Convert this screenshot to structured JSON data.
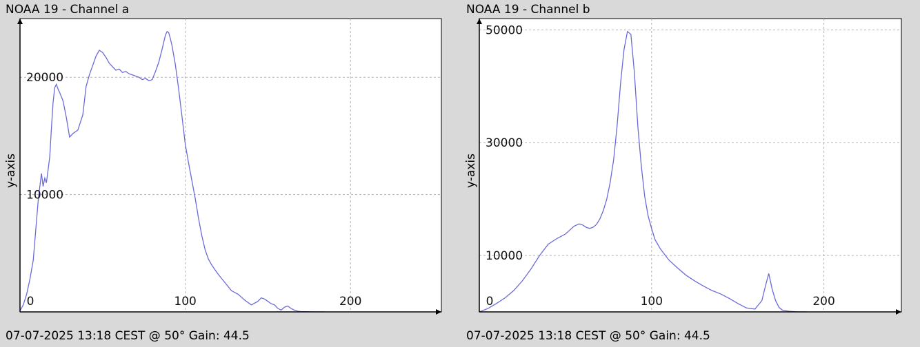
{
  "colors": {
    "background": "#d9d9d9",
    "plot_background": "#ffffff",
    "line": "#6a6ad8",
    "grid": "#b3b3b3",
    "axis": "#000000"
  },
  "chart_data": [
    {
      "type": "line",
      "title": "NOAA 19 - Channel a",
      "xlabel": "",
      "ylabel": "y-axis",
      "footer": "07-07-2025 13:18 CEST @ 50° Gain: 44.5",
      "xlim": [
        0,
        255
      ],
      "ylim": [
        0,
        25000
      ],
      "x_ticks": [
        0,
        100,
        200
      ],
      "y_ticks": [
        10000,
        20000
      ],
      "grid": true,
      "series": [
        {
          "x": [
            0,
            2,
            4,
            6,
            8,
            9,
            10,
            11,
            12,
            13,
            14,
            15,
            16,
            18,
            19,
            20,
            21,
            22,
            23,
            24,
            26,
            28,
            30,
            32,
            35,
            38,
            40,
            42,
            44,
            46,
            48,
            50,
            52,
            54,
            56,
            58,
            60,
            62,
            64,
            66,
            68,
            70,
            72,
            74,
            76,
            78,
            80,
            82,
            84,
            86,
            88,
            89,
            90,
            91,
            92,
            94,
            96,
            98,
            100,
            102,
            104,
            106,
            108,
            110,
            112,
            114,
            116,
            118,
            120,
            124,
            128,
            132,
            136,
            140,
            144,
            146,
            148,
            150,
            152,
            154,
            156,
            158,
            160,
            162,
            164,
            166,
            168,
            170,
            174,
            178,
            182,
            184
          ],
          "y": [
            100,
            600,
            1500,
            2800,
            4400,
            6100,
            7800,
            9500,
            10700,
            11800,
            10700,
            11400,
            11000,
            13200,
            15600,
            17800,
            19100,
            19400,
            19000,
            18700,
            18000,
            16600,
            14900,
            15200,
            15500,
            16800,
            19200,
            20200,
            21000,
            21800,
            22300,
            22100,
            21700,
            21200,
            20900,
            20600,
            20700,
            20400,
            20500,
            20300,
            20200,
            20100,
            20000,
            19800,
            19900,
            19700,
            19800,
            20500,
            21300,
            22400,
            23600,
            23900,
            23800,
            23300,
            22700,
            21100,
            19000,
            16700,
            14300,
            12700,
            11200,
            9700,
            8000,
            6500,
            5300,
            4500,
            4000,
            3600,
            3200,
            2500,
            1800,
            1500,
            1000,
            600,
            900,
            1200,
            1100,
            900,
            700,
            600,
            300,
            150,
            400,
            500,
            300,
            150,
            60,
            30,
            10,
            5,
            0,
            0
          ]
        }
      ]
    },
    {
      "type": "line",
      "title": "NOAA 19 - Channel b",
      "xlabel": "",
      "ylabel": "y-axis",
      "footer": "07-07-2025 13:18 CEST @ 50° Gain: 44.5",
      "xlim": [
        0,
        245
      ],
      "ylim": [
        0,
        52000
      ],
      "x_ticks": [
        0,
        100,
        200
      ],
      "y_ticks": [
        10000,
        30000,
        50000
      ],
      "grid": true,
      "series": [
        {
          "x": [
            0,
            5,
            10,
            15,
            20,
            25,
            30,
            35,
            40,
            45,
            50,
            55,
            58,
            60,
            62,
            64,
            66,
            68,
            70,
            72,
            74,
            76,
            78,
            80,
            82,
            84,
            86,
            88,
            90,
            92,
            94,
            96,
            98,
            100,
            102,
            105,
            110,
            115,
            120,
            125,
            130,
            135,
            140,
            145,
            150,
            155,
            160,
            164,
            166,
            168,
            170,
            172,
            174,
            176,
            180,
            185,
            190
          ],
          "y": [
            0,
            600,
            1500,
            2500,
            3800,
            5500,
            7600,
            10000,
            12000,
            13000,
            13800,
            15200,
            15600,
            15400,
            15000,
            14800,
            15000,
            15500,
            16500,
            18000,
            20000,
            23000,
            27000,
            33000,
            40500,
            46500,
            49700,
            49200,
            42500,
            33000,
            26000,
            20500,
            17000,
            14800,
            12800,
            11200,
            9200,
            7800,
            6500,
            5500,
            4600,
            3800,
            3200,
            2400,
            1500,
            700,
            500,
            2000,
            4500,
            6800,
            4000,
            2000,
            800,
            300,
            100,
            0,
            0
          ]
        }
      ]
    }
  ]
}
